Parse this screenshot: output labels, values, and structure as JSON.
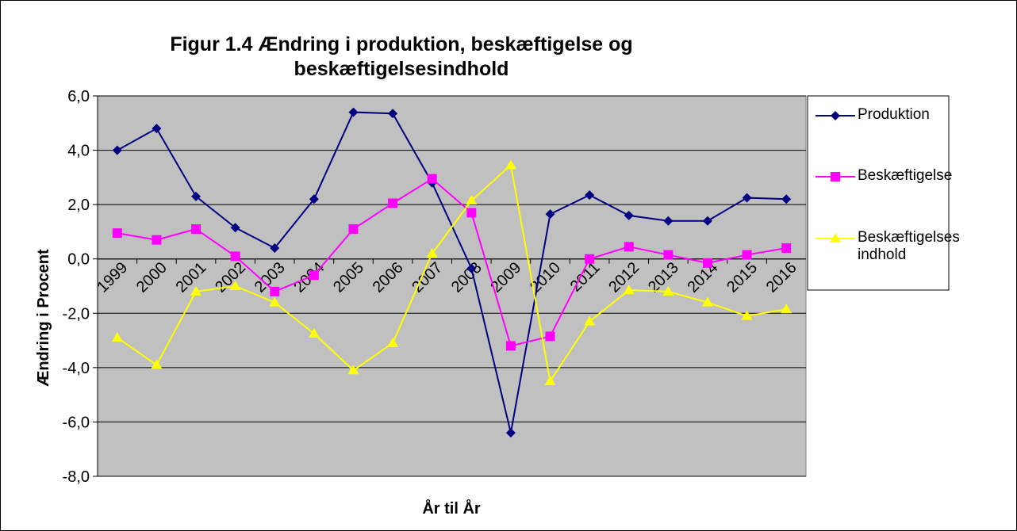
{
  "chart_data": {
    "type": "line",
    "title": "Figur 1.4 Ændring i produktion, beskæftigelse og beskæftigelsesindhold",
    "x_label": "År til År",
    "y_label": "Ændring i Procent",
    "categories": [
      "1999",
      "2000",
      "2001",
      "2002",
      "2003",
      "2004",
      "2005",
      "2006",
      "2007",
      "2008",
      "2009",
      "2010",
      "2011",
      "2012",
      "2013",
      "2014",
      "2015",
      "2016"
    ],
    "series": [
      {
        "name": "Produktion",
        "color": "#000080",
        "marker": "diamond",
        "values": [
          4.0,
          4.8,
          2.3,
          1.15,
          0.4,
          2.2,
          5.4,
          5.35,
          2.8,
          -0.35,
          -6.4,
          1.65,
          2.35,
          1.6,
          1.4,
          1.4,
          2.25,
          2.2
        ]
      },
      {
        "name": "Beskæftigelse",
        "color": "#ff00ff",
        "marker": "square",
        "values": [
          0.95,
          0.7,
          1.1,
          0.1,
          -1.2,
          -0.6,
          1.1,
          2.05,
          2.95,
          1.7,
          -3.2,
          -2.85,
          0.0,
          0.45,
          0.15,
          -0.15,
          0.15,
          0.4
        ]
      },
      {
        "name": "Beskæftigelses indhold",
        "color": "#ffff00",
        "marker": "triangle",
        "values": [
          -2.9,
          -3.9,
          -1.2,
          -1.0,
          -1.6,
          -2.75,
          -4.1,
          -3.1,
          0.2,
          2.15,
          3.45,
          -4.5,
          -2.3,
          -1.15,
          -1.2,
          -1.6,
          -2.1,
          -1.85
        ]
      }
    ],
    "ylim": [
      -8,
      6
    ],
    "yticks": [
      {
        "value": -8,
        "label": "-8,0"
      },
      {
        "value": -6,
        "label": "-6,0"
      },
      {
        "value": -4,
        "label": "-4,0"
      },
      {
        "value": -2,
        "label": "-2,0"
      },
      {
        "value": 0,
        "label": "0,0"
      },
      {
        "value": 2,
        "label": "2,0"
      },
      {
        "value": 4,
        "label": "4,0"
      },
      {
        "value": 6,
        "label": "6,0"
      }
    ],
    "grid": true,
    "plot_background": "#c0c0c0",
    "legend": "right"
  }
}
